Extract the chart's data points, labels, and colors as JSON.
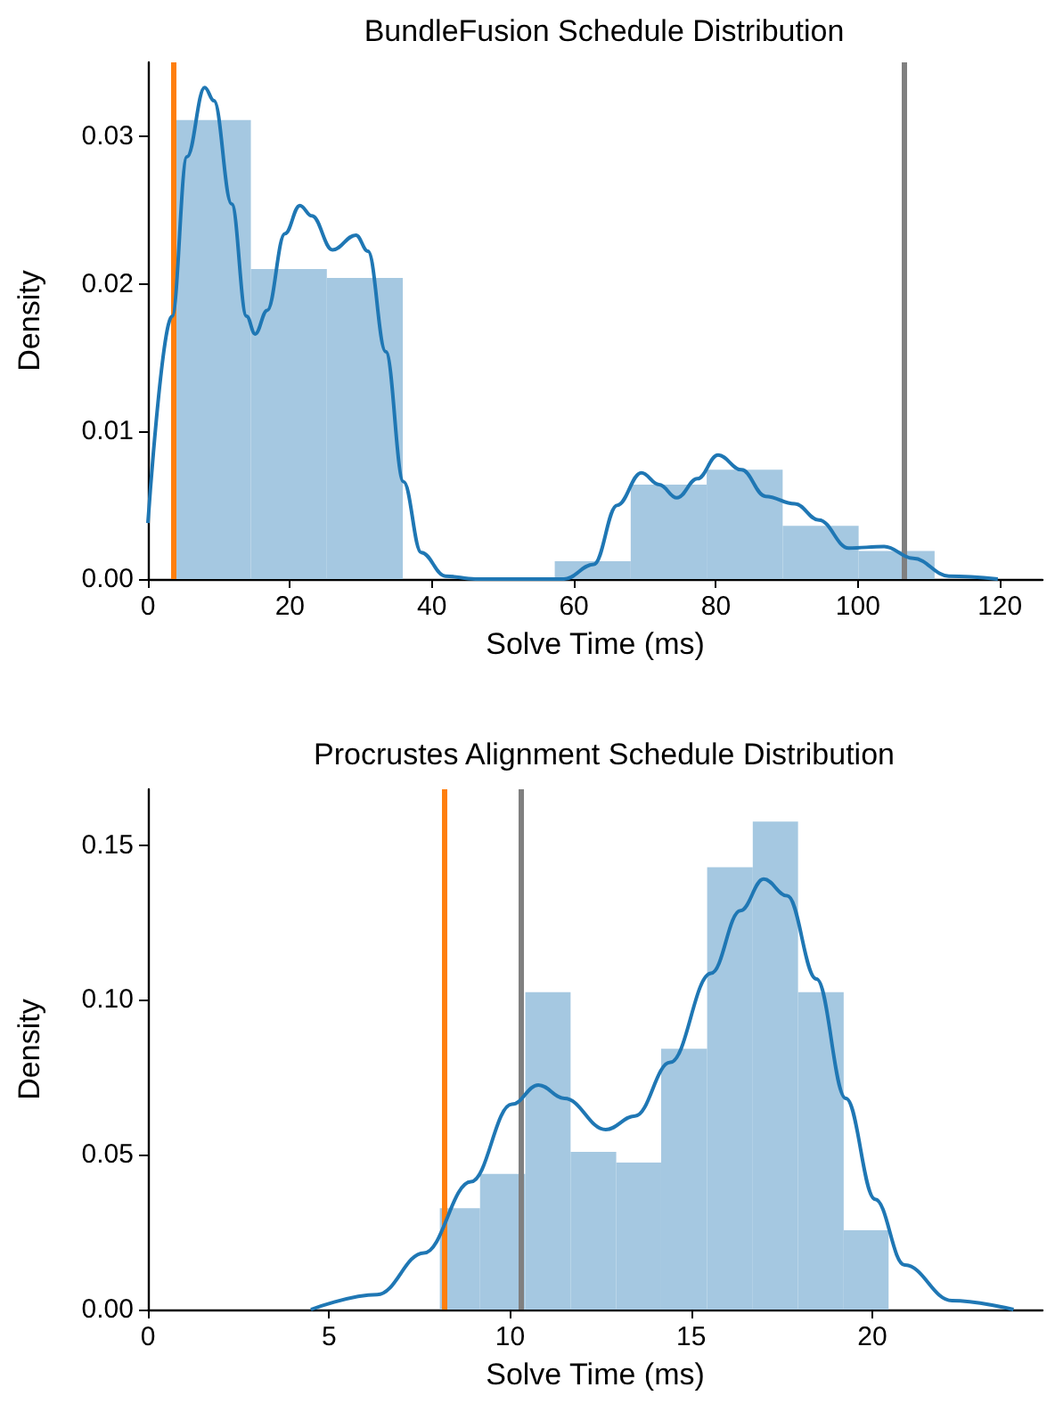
{
  "chart_data": [
    {
      "type": "histogram",
      "title": "BundleFusion Schedule Distribution",
      "xlabel": "Solve Time (ms)",
      "ylabel": "Density",
      "xlim": [
        0,
        126
      ],
      "xticks": [
        0,
        20,
        40,
        60,
        80,
        100,
        120
      ],
      "ylim": [
        0,
        0.035
      ],
      "yticks": [
        {
          "value": 0,
          "label": "0.00"
        },
        {
          "value": 0.01,
          "label": "0.01"
        },
        {
          "value": 0.02,
          "label": "0.02"
        },
        {
          "value": 0.03,
          "label": "0.03"
        }
      ],
      "grid": false,
      "series": [
        {
          "type": "histogram",
          "color": "#a5c8e1",
          "bins": [
            3.8,
            14.5,
            25.2,
            35.9,
            46.6,
            57.3,
            68.0,
            78.7,
            89.4,
            100.1,
            110.8
          ],
          "values": [
            0.0311,
            0.021,
            0.0204,
            0,
            0,
            0.0012,
            0.0064,
            0.0074,
            0.0036,
            0.0019
          ]
        },
        {
          "type": "line",
          "color": "#1f77b4",
          "x": [
            0,
            3.4,
            5.5,
            8.0,
            9.3,
            11.8,
            13.9,
            15.1,
            16.8,
            19.3,
            21.4,
            23.1,
            26.0,
            29.3,
            31.0,
            33.5,
            36.0,
            38.5,
            41.9,
            46.1,
            58.6,
            62.8,
            66.1,
            69.5,
            72.0,
            74.5,
            77.4,
            80.3,
            83.6,
            87.0,
            91.1,
            94.5,
            98.7,
            103.7,
            107.8,
            112.8,
            119.7
          ],
          "values": [
            0.0038,
            0.0178,
            0.0286,
            0.0333,
            0.0324,
            0.0254,
            0.0178,
            0.0166,
            0.0182,
            0.0234,
            0.0253,
            0.0246,
            0.0223,
            0.0233,
            0.0222,
            0.0154,
            0.0066,
            0.0018,
            0.0002,
            0,
            0,
            0.001,
            0.005,
            0.0072,
            0.0064,
            0.0055,
            0.0068,
            0.0084,
            0.0074,
            0.0056,
            0.0051,
            0.004,
            0.0021,
            0.0022,
            0.0014,
            0.0002,
            0
          ]
        }
      ],
      "ref_lines": [
        {
          "axis": "x",
          "value": 3.7,
          "color": "#ff7f0e"
        },
        {
          "axis": "x",
          "value": 106.6,
          "color": "#808080"
        }
      ]
    },
    {
      "type": "histogram",
      "title": "Procrustes Alignment Schedule Distribution",
      "xlabel": "Solve Time (ms)",
      "ylabel": "Density",
      "xlim": [
        0,
        24.7
      ],
      "xticks": [
        0,
        5,
        10,
        15,
        20
      ],
      "ylim": [
        0,
        0.168
      ],
      "yticks": [
        {
          "value": 0,
          "label": "0.00"
        },
        {
          "value": 0.05,
          "label": "0.05"
        },
        {
          "value": 0.1,
          "label": "0.10"
        },
        {
          "value": 0.15,
          "label": "0.15"
        }
      ],
      "grid": false,
      "series": [
        {
          "type": "histogram",
          "color": "#a5c8e1",
          "bins": [
            8.06,
            9.17,
            10.42,
            11.67,
            12.93,
            14.17,
            15.44,
            16.7,
            17.95,
            19.21,
            20.45
          ],
          "values": [
            0.0327,
            0.0438,
            0.1025,
            0.0509,
            0.0475,
            0.0842,
            0.1428,
            0.1576,
            0.1025,
            0.0256
          ]
        },
        {
          "type": "line",
          "color": "#1f77b4",
          "x": [
            4.5,
            6.33,
            7.62,
            8.92,
            10.05,
            10.78,
            11.5,
            12.64,
            13.45,
            14.42,
            15.55,
            16.36,
            17.0,
            17.65,
            18.46,
            19.27,
            20.08,
            20.89,
            22.2,
            23.9
          ],
          "values": [
            0,
            0.0048,
            0.0183,
            0.0413,
            0.0663,
            0.0725,
            0.0682,
            0.0581,
            0.0625,
            0.0798,
            0.1086,
            0.1288,
            0.139,
            0.1336,
            0.1067,
            0.0682,
            0.0356,
            0.0144,
            0.0029,
            0
          ]
        }
      ],
      "ref_lines": [
        {
          "axis": "x",
          "value": 8.16,
          "color": "#ff7f0e"
        },
        {
          "axis": "x",
          "value": 10.31,
          "color": "#808080"
        }
      ]
    }
  ]
}
